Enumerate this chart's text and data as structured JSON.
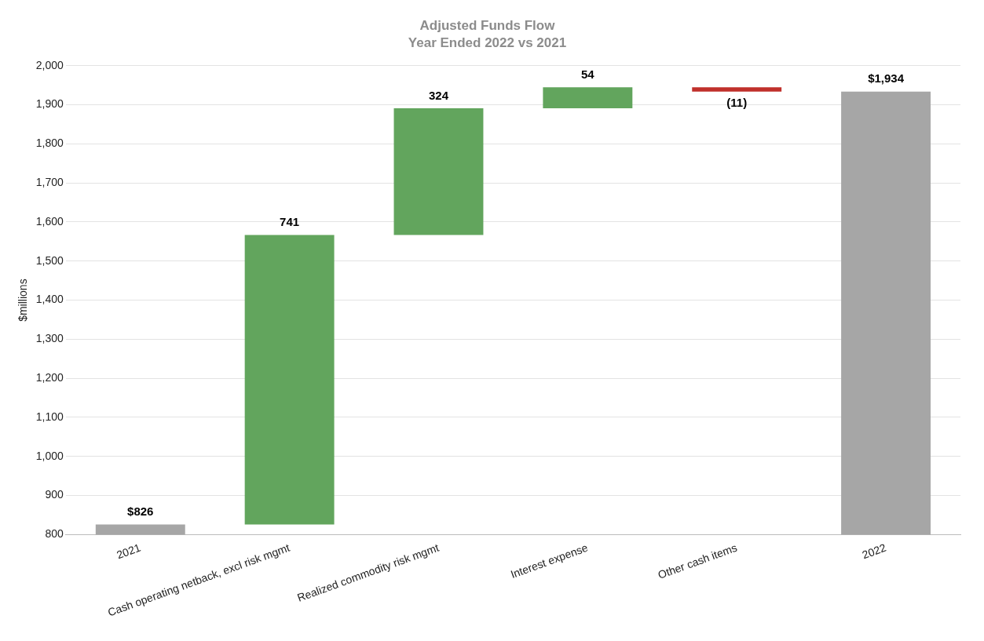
{
  "chart_data": {
    "type": "bar",
    "title": "Adjusted Funds Flow",
    "subtitle": "Year Ended 2022 vs 2021",
    "ylabel": "$millions",
    "categories": [
      "2021",
      "Cash operating netback, excl risk mgmt",
      "Realized commodity risk mgmt",
      "Interest expense",
      "Other cash items",
      "2022"
    ],
    "values": [
      826,
      741,
      324,
      54,
      -11,
      1934
    ],
    "base": [
      0,
      826,
      1567,
      1891,
      1945,
      0
    ],
    "colors": [
      "#a6a6a6",
      "#62a55d",
      "#62a55d",
      "#62a55d",
      "#c0302b",
      "#a6a6a6"
    ],
    "value_labels": [
      "$826",
      "741",
      "324",
      "54",
      "(11)",
      "$1,934"
    ],
    "ylim": [
      800,
      2000
    ],
    "yticks": [
      800,
      900,
      {
        "value": 1000,
        "label": "1,000"
      },
      {
        "value": 1100,
        "label": "1,100"
      },
      {
        "value": 1200,
        "label": "1,200"
      },
      {
        "value": 1300,
        "label": "1,300"
      },
      {
        "value": 1400,
        "label": "1,400"
      },
      {
        "value": 1500,
        "label": "1,500"
      },
      {
        "value": 1600,
        "label": "1,600"
      },
      {
        "value": 1700,
        "label": "1,700"
      },
      {
        "value": 1800,
        "label": "1,800"
      },
      {
        "value": 1900,
        "label": "1,900"
      },
      {
        "value": 2000,
        "label": "2,000"
      }
    ],
    "grid": "y",
    "legend": false
  }
}
